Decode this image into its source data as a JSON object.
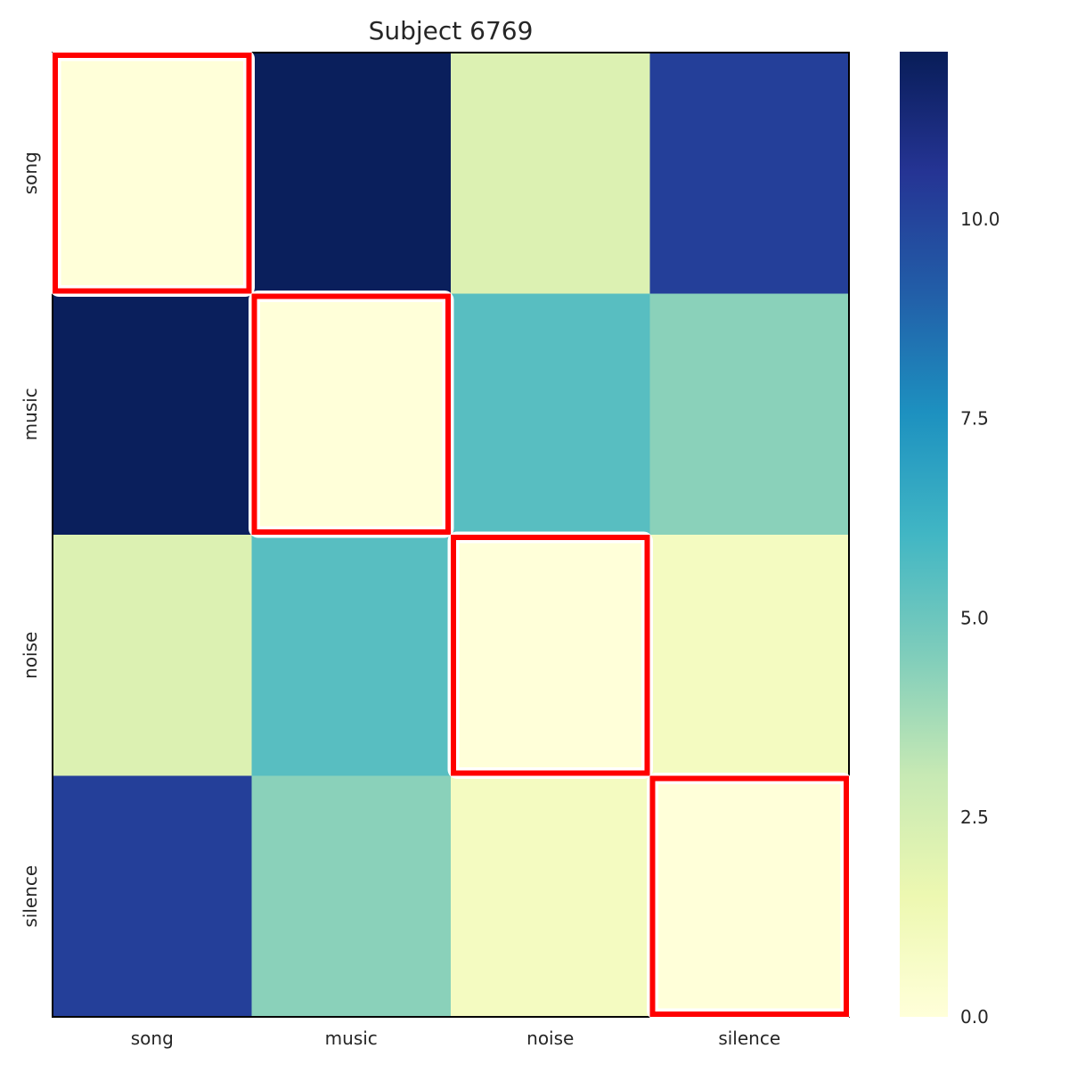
{
  "chart_data": {
    "type": "heatmap",
    "title": "Subject 6769",
    "xlabel": "",
    "ylabel": "",
    "x_categories": [
      "song",
      "music",
      "noise",
      "silence"
    ],
    "y_categories": [
      "song",
      "music",
      "noise",
      "silence"
    ],
    "matrix": [
      [
        0.0,
        12.0,
        2.2,
        10.2
      ],
      [
        12.0,
        0.0,
        5.5,
        4.3
      ],
      [
        2.2,
        5.5,
        0.0,
        0.9
      ],
      [
        10.2,
        4.3,
        0.9,
        0.0
      ]
    ],
    "highlighted_cells": [
      [
        0,
        0
      ],
      [
        1,
        1
      ],
      [
        2,
        2
      ],
      [
        3,
        3
      ]
    ],
    "highlight_color": "#ff0000",
    "colormap": "YlGnBu",
    "colorbar": {
      "vmin": 0.0,
      "vmax": 12.1,
      "ticks": [
        0.0,
        2.5,
        5.0,
        7.5,
        10.0
      ],
      "tick_labels": [
        "0.0",
        "2.5",
        "5.0",
        "7.5",
        "10.0"
      ]
    },
    "grid": false,
    "legend": "none"
  }
}
